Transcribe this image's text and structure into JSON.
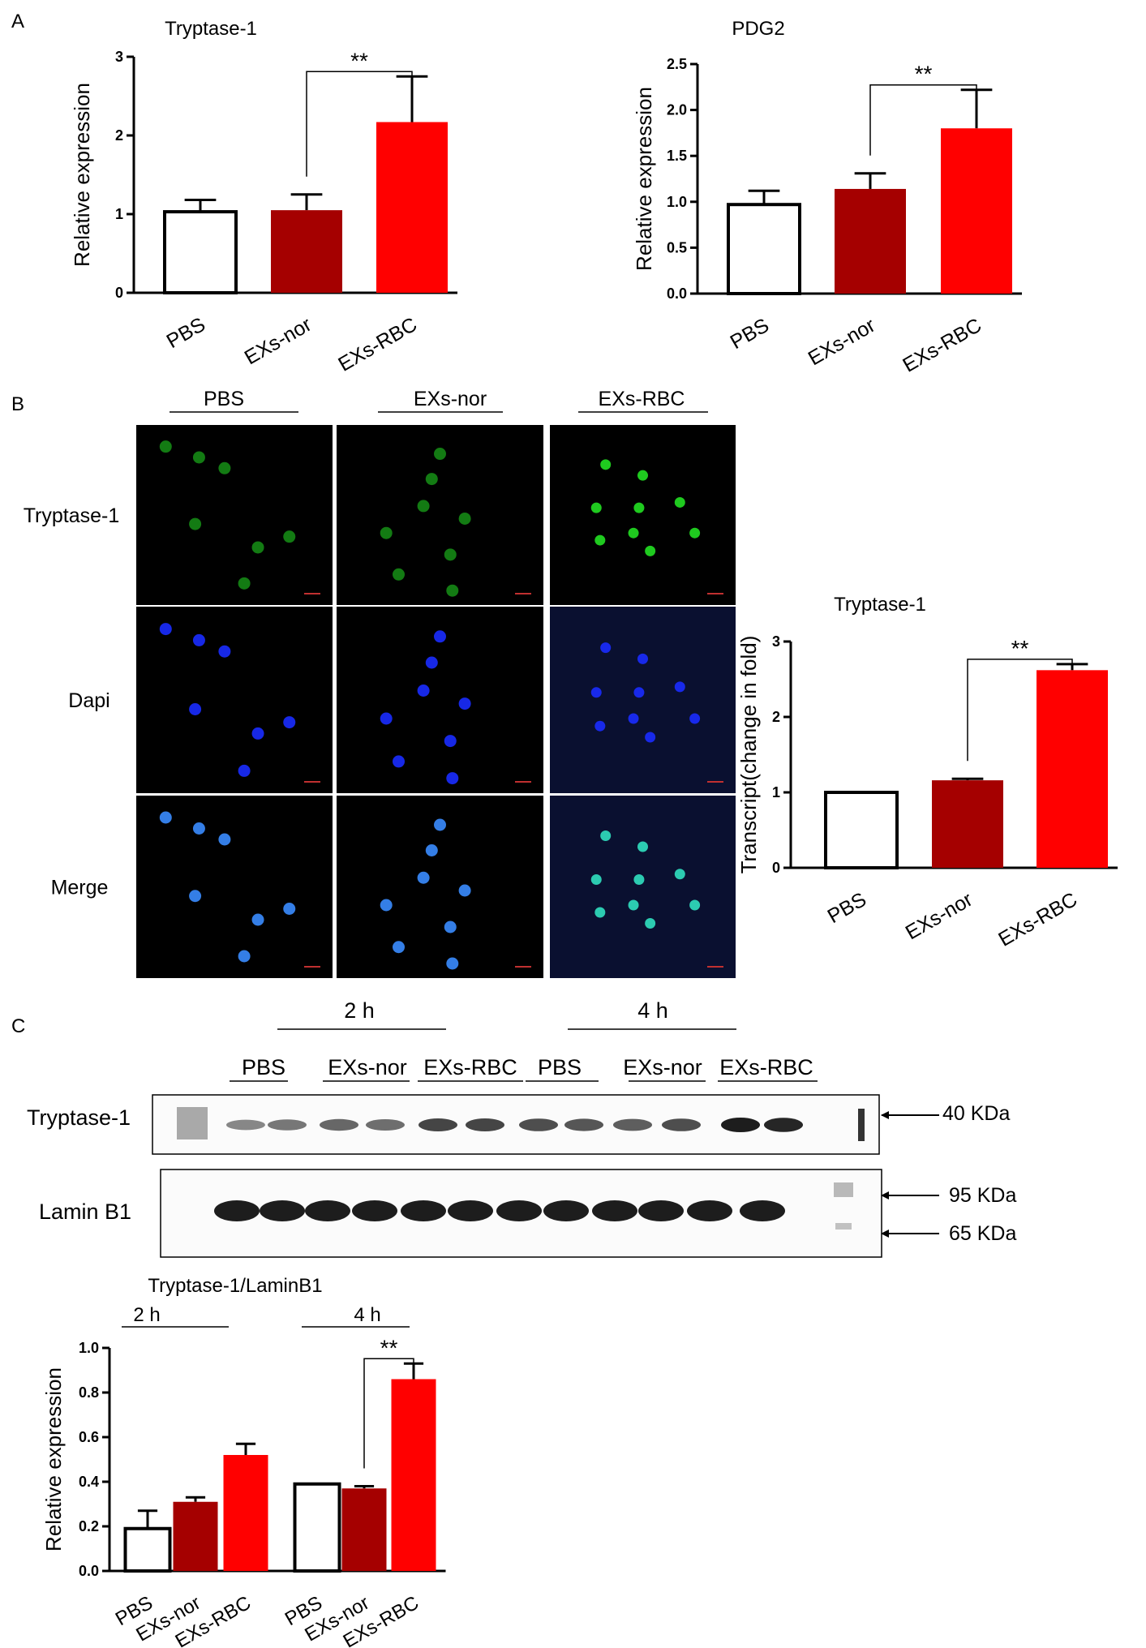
{
  "panels": {
    "a": "A",
    "b": "B",
    "c": "C"
  },
  "colors": {
    "pbs": "#ffffff",
    "nor": "#a50000",
    "rbc": "#ff0000",
    "green": "#22e022",
    "blue": "#1a2cff",
    "cyan": "#30e0c0"
  },
  "sig": "**",
  "chart_data": [
    {
      "id": "a1",
      "type": "bar",
      "title": "Tryptase-1",
      "xlabel": "",
      "ylabel": "Relative expression",
      "ylim": [
        0,
        3
      ],
      "yticks": [
        "0",
        "1",
        "2",
        "3"
      ],
      "categories": [
        "PBS",
        "EXs-nor",
        "EXs-RBC"
      ],
      "values": [
        1.03,
        1.05,
        2.17
      ],
      "errors": [
        0.15,
        0.2,
        0.58
      ],
      "annotation": {
        "text": "**",
        "between": [
          1,
          2
        ]
      }
    },
    {
      "id": "a2",
      "type": "bar",
      "title": "PDG2",
      "xlabel": "",
      "ylabel": "Relative expression",
      "ylim": [
        0,
        2.5
      ],
      "yticks": [
        "0.0",
        "0.5",
        "1.0",
        "1.5",
        "2.0",
        "2.5"
      ],
      "categories": [
        "PBS",
        "EXs-nor",
        "EXs-RBC"
      ],
      "values": [
        0.97,
        1.14,
        1.8
      ],
      "errors": [
        0.15,
        0.17,
        0.42
      ],
      "annotation": {
        "text": "**",
        "between": [
          1,
          2
        ]
      }
    },
    {
      "id": "b",
      "type": "bar",
      "title": "Tryptase-1",
      "xlabel": "",
      "ylabel": "Transcript(change in fold)",
      "ylim": [
        0,
        3
      ],
      "yticks": [
        "0",
        "1",
        "2",
        "3"
      ],
      "categories": [
        "PBS",
        "EXs-nor",
        "EXs-RBC"
      ],
      "values": [
        1.0,
        1.16,
        2.62
      ],
      "errors": [
        0.0,
        0.02,
        0.08
      ],
      "annotation": {
        "text": "**",
        "between": [
          1,
          2
        ]
      }
    },
    {
      "id": "c",
      "type": "bar",
      "title": "Tryptase-1/LaminB1",
      "xlabel": "",
      "ylabel": "Relative expression",
      "ylim": [
        0,
        1.0
      ],
      "yticks": [
        "0.0",
        "0.2",
        "0.4",
        "0.6",
        "0.8",
        "1.0"
      ],
      "groups": [
        "2 h",
        "4 h"
      ],
      "categories": [
        "PBS",
        "EXs-nor",
        "EXs-RBC",
        "PBS",
        "EXs-nor",
        "EXs-RBC"
      ],
      "values": [
        0.19,
        0.31,
        0.52,
        0.39,
        0.37,
        0.86
      ],
      "errors": [
        0.08,
        0.02,
        0.05,
        0.0,
        0.01,
        0.07
      ],
      "annotation": {
        "text": "**",
        "between": [
          4,
          5
        ]
      }
    }
  ],
  "micrographs": {
    "columns": [
      "PBS",
      "EXs-nor",
      "EXs-RBC"
    ],
    "rows": [
      "Tryptase-1",
      "Dapi",
      "Merge"
    ]
  },
  "blot": {
    "timepoints": [
      "2 h",
      "4 h"
    ],
    "lanes": [
      "PBS",
      "EXs-nor",
      "EXs-RBC",
      "PBS",
      "EXs-nor",
      "EXs-RBC"
    ],
    "rows": [
      "Tryptase-1",
      "Lamin B1"
    ],
    "markers": [
      "40 KDa",
      "95 KDa",
      "65 KDa"
    ]
  }
}
